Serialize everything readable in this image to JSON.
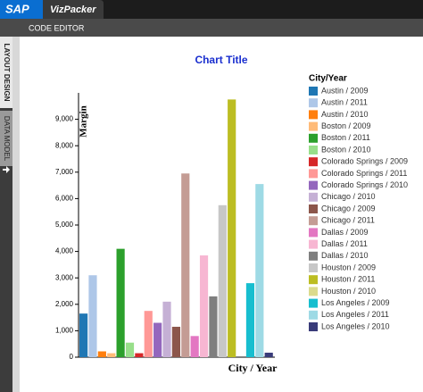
{
  "app": {
    "logo": "SAP",
    "name": "VizPacker",
    "toolbar": "CODE EDITOR",
    "tabs": [
      "LAYOUT DESIGN",
      "DATA MODEL"
    ]
  },
  "chart_data": {
    "type": "bar",
    "title": "Chart Title",
    "y_label": "Margin",
    "x_label": "City / Year",
    "legend_title": "City/Year",
    "categories": [
      "Austin / 2009",
      "Austin / 2011",
      "Austin / 2010",
      "Boston / 2009",
      "Boston / 2011",
      "Boston / 2010",
      "Colorado Springs / 2009",
      "Colorado Springs / 2011",
      "Colorado Springs / 2010",
      "Chicago / 2010",
      "Chicago / 2009",
      "Chicago / 2011",
      "Dallas / 2009",
      "Dallas / 2011",
      "Dallas / 2010",
      "Houston / 2009",
      "Houston / 2011",
      "Houston / 2010",
      "Los Angeles / 2009",
      "Los Angeles / 2011",
      "Los Angeles / 2010"
    ],
    "values": [
      1650,
      3100,
      220,
      150,
      4100,
      550,
      150,
      1750,
      1300,
      2100,
      1150,
      6950,
      800,
      3850,
      2300,
      5750,
      9750,
      0,
      2800,
      6550,
      170
    ],
    "colors": [
      "#1f77b4",
      "#aec7e8",
      "#ff7f0e",
      "#ffbb78",
      "#2ca02c",
      "#98df8a",
      "#d62728",
      "#ff9896",
      "#9467bd",
      "#c5b0d5",
      "#8c564b",
      "#c49c94",
      "#e377c2",
      "#f7b6d2",
      "#7f7f7f",
      "#c7c7c7",
      "#bcbd22",
      "#dbdb8d",
      "#17becf",
      "#9edae5",
      "#393b79"
    ],
    "ylim": [
      0,
      10000
    ],
    "yticks": [
      0,
      {
        "value": 1000,
        "label": "1,000"
      },
      {
        "value": 2000,
        "label": "2,000"
      },
      {
        "value": 3000,
        "label": "3,000"
      },
      {
        "value": 4000,
        "label": "4,000"
      },
      {
        "value": 5000,
        "label": "5,000"
      },
      {
        "value": 6000,
        "label": "6,000"
      },
      {
        "value": 7000,
        "label": "7,000"
      },
      {
        "value": 8000,
        "label": "8,000"
      },
      {
        "value": 9000,
        "label": "9,000"
      }
    ]
  }
}
